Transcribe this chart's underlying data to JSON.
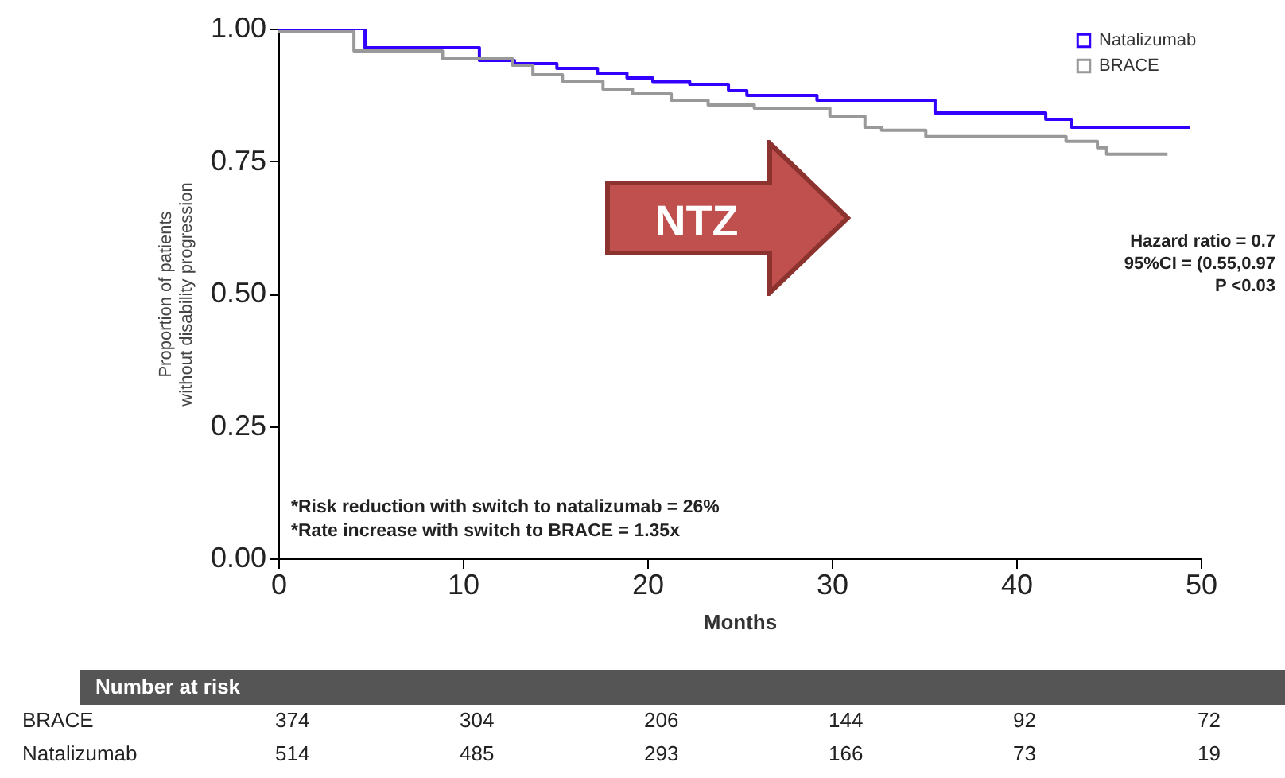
{
  "chart_data": {
    "type": "step",
    "xlabel": "Months",
    "ylabel": "Proportion of patients without disability progression",
    "xlim": [
      0,
      50
    ],
    "xticks": [
      0,
      10,
      20,
      30,
      40,
      50
    ],
    "ylim": [
      0,
      1
    ],
    "yticks": [
      {
        "value": 0,
        "label": "0.00"
      },
      {
        "value": 0.25,
        "label": "0.25"
      },
      {
        "value": 0.5,
        "label": "0.50"
      },
      {
        "value": 0.75,
        "label": "0.75"
      },
      {
        "value": 1,
        "label": "1.00"
      }
    ],
    "grid": false,
    "legend": "top right",
    "marker": "none",
    "line_style": "solid",
    "series": [
      {
        "name": "Natalizumab",
        "color": "#3300ff",
        "x": [
          0,
          4.7,
          10.9,
          12.8,
          15.1,
          17.3,
          18.9,
          20.3,
          22.3,
          24.4,
          25.4,
          29.2,
          35.6,
          41.6,
          43,
          49.4
        ],
        "values": [
          1,
          0.964,
          0.94,
          0.934,
          0.925,
          0.916,
          0.907,
          0.9,
          0.895,
          0.883,
          0.874,
          0.865,
          0.841,
          0.829,
          0.814,
          0.814
        ]
      },
      {
        "name": "BRACE",
        "color": "#999999",
        "x": [
          0,
          4.1,
          8.9,
          12.7,
          13.8,
          15.4,
          17.6,
          19.2,
          21.3,
          23.3,
          25.8,
          29.9,
          31.8,
          32.7,
          35.1,
          42.7,
          44.4,
          44.9,
          48.2
        ],
        "values": [
          0.994,
          0.958,
          0.943,
          0.931,
          0.913,
          0.901,
          0.886,
          0.877,
          0.865,
          0.856,
          0.85,
          0.835,
          0.814,
          0.808,
          0.796,
          0.787,
          0.775,
          0.763,
          0.763
        ]
      }
    ],
    "annotations": [
      "*Risk reduction with switch to natalizumab = 26%",
      "*Rate increase with switch to BRACE = 1.35x",
      "Hazard ratio = 0.7",
      "95%CI = (0.55,0.97",
      "P <0.03",
      "NTZ",
      "Number at risk",
      "BRACE",
      "374",
      "304",
      "206",
      "144",
      "92",
      "72",
      "Natalizumab",
      "514",
      "485",
      "293",
      "166",
      "73",
      "19"
    ]
  }
}
